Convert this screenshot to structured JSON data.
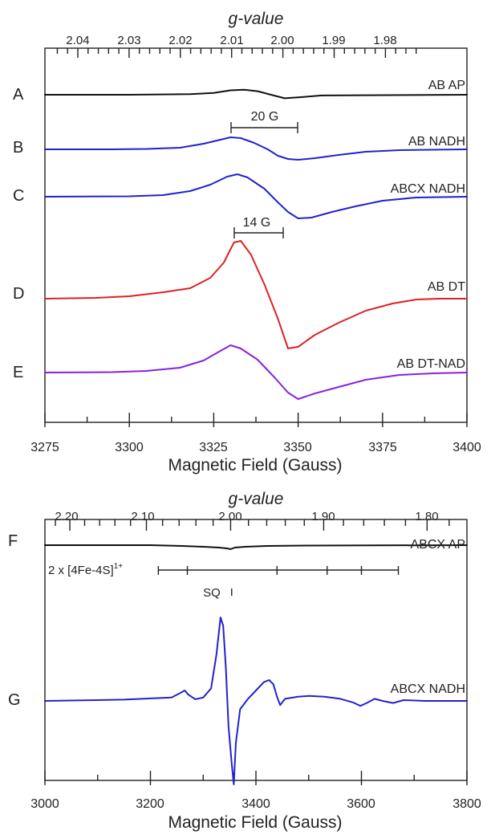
{
  "chart_data": [
    {
      "type": "line",
      "top_axis": {
        "label": "g-value",
        "ticks": [
          "2.04",
          "2.03",
          "2.02",
          "2.01",
          "2.00",
          "1.99",
          "1.98"
        ],
        "values": [
          2.04,
          2.03,
          2.02,
          2.01,
          2.0,
          1.99,
          1.98
        ],
        "minor_step": 0.002
      },
      "x_axis": {
        "label": "Magnetic Field (Gauss)",
        "ticks": [
          "3275",
          "3300",
          "3325",
          "3350",
          "3375",
          "3400"
        ],
        "values": [
          3275,
          3300,
          3325,
          3350,
          3375,
          3400
        ],
        "xlim": [
          3275,
          3400
        ],
        "minor_step": 12.5
      },
      "scale_bars": [
        {
          "label": "20 G",
          "x_start": 3330,
          "x_end": 3350
        },
        {
          "label": "14 G",
          "x_start": 3331,
          "x_end": 3345
        }
      ],
      "series": [
        {
          "letter": "A",
          "name": "AB AP",
          "color": "#111111",
          "points": [
            [
              3275,
              0
            ],
            [
              3300,
              0
            ],
            [
              3318,
              0.3
            ],
            [
              3325,
              1
            ],
            [
              3330,
              2.5
            ],
            [
              3334,
              2.8
            ],
            [
              3338,
              2
            ],
            [
              3343,
              -0.5
            ],
            [
              3346,
              -2
            ],
            [
              3350,
              -1.5
            ],
            [
              3357,
              -0.4
            ],
            [
              3400,
              0
            ]
          ]
        },
        {
          "letter": "B",
          "name": "AB NADH",
          "color": "#2222cc",
          "points": [
            [
              3275,
              0
            ],
            [
              3295,
              0
            ],
            [
              3305,
              0.5
            ],
            [
              3315,
              2
            ],
            [
              3322,
              7
            ],
            [
              3327,
              12
            ],
            [
              3330,
              15
            ],
            [
              3333,
              14
            ],
            [
              3337,
              8
            ],
            [
              3341,
              0
            ],
            [
              3344,
              -8
            ],
            [
              3347,
              -12
            ],
            [
              3350,
              -13
            ],
            [
              3355,
              -11
            ],
            [
              3362,
              -7
            ],
            [
              3370,
              -3
            ],
            [
              3380,
              -1
            ],
            [
              3400,
              0
            ]
          ]
        },
        {
          "letter": "C",
          "name": "ABCX NADH",
          "color": "#2222cc",
          "points": [
            [
              3275,
              0
            ],
            [
              3300,
              0.5
            ],
            [
              3310,
              2
            ],
            [
              3318,
              7
            ],
            [
              3324,
              15
            ],
            [
              3329,
              25
            ],
            [
              3332,
              28
            ],
            [
              3335,
              24
            ],
            [
              3340,
              10
            ],
            [
              3344,
              -7
            ],
            [
              3347,
              -19
            ],
            [
              3350,
              -27
            ],
            [
              3354,
              -26
            ],
            [
              3360,
              -19
            ],
            [
              3367,
              -12
            ],
            [
              3375,
              -5
            ],
            [
              3385,
              -1
            ],
            [
              3400,
              0
            ]
          ]
        },
        {
          "letter": "D",
          "name": "AB DT",
          "color": "#dd2222",
          "points": [
            [
              3275,
              0
            ],
            [
              3290,
              1
            ],
            [
              3300,
              3
            ],
            [
              3310,
              8
            ],
            [
              3318,
              13
            ],
            [
              3324,
              26
            ],
            [
              3328,
              45
            ],
            [
              3331,
              70
            ],
            [
              3333,
              72
            ],
            [
              3336,
              55
            ],
            [
              3340,
              18
            ],
            [
              3344,
              -25
            ],
            [
              3347,
              -62
            ],
            [
              3350,
              -60
            ],
            [
              3355,
              -45
            ],
            [
              3362,
              -30
            ],
            [
              3370,
              -15
            ],
            [
              3378,
              -6
            ],
            [
              3385,
              -1
            ],
            [
              3392,
              0
            ],
            [
              3400,
              0
            ]
          ]
        },
        {
          "letter": "E",
          "name": "AB DT-NAD",
          "color": "#8822dd",
          "points": [
            [
              3275,
              0
            ],
            [
              3295,
              0.5
            ],
            [
              3305,
              2
            ],
            [
              3315,
              6
            ],
            [
              3322,
              15
            ],
            [
              3327,
              27
            ],
            [
              3330,
              34
            ],
            [
              3333,
              30
            ],
            [
              3338,
              16
            ],
            [
              3343,
              -6
            ],
            [
              3347,
              -25
            ],
            [
              3350,
              -33
            ],
            [
              3355,
              -26
            ],
            [
              3362,
              -18
            ],
            [
              3370,
              -9
            ],
            [
              3380,
              -3
            ],
            [
              3390,
              -1
            ],
            [
              3400,
              0
            ]
          ]
        }
      ]
    },
    {
      "type": "line",
      "top_axis": {
        "label": "g-value",
        "ticks": [
          "2.20",
          "2.10",
          "2.00",
          "1.90",
          "1.80"
        ],
        "values": [
          2.2,
          2.1,
          2.0,
          1.9,
          1.8
        ],
        "minor_step": 0.02
      },
      "x_axis": {
        "label": "Magnetic Field (Gauss)",
        "ticks": [
          "3000",
          "3200",
          "3400",
          "3600",
          "3800"
        ],
        "values": [
          3000,
          3200,
          3400,
          3600,
          3800
        ],
        "xlim": [
          3000,
          3800
        ],
        "minor_step": 100
      },
      "annotations": {
        "cluster_label_main": "2 x [4Fe-4S]",
        "cluster_label_sup": "1+",
        "cluster_bar_start": 3215,
        "cluster_bar_end": 3670,
        "cluster_ticks": [
          3215,
          3270,
          3440,
          3535,
          3600,
          3670
        ],
        "sq_label": "SQ",
        "sq_position": 3354
      },
      "series": [
        {
          "letter": "F",
          "name": "ABCX AP",
          "color": "#111111",
          "points": [
            [
              3000,
              0
            ],
            [
              3200,
              0
            ],
            [
              3260,
              -1
            ],
            [
              3300,
              -2
            ],
            [
              3330,
              -3
            ],
            [
              3345,
              -4
            ],
            [
              3352,
              -5
            ],
            [
              3360,
              -3
            ],
            [
              3380,
              -2
            ],
            [
              3420,
              -1
            ],
            [
              3500,
              -0.5
            ],
            [
              3800,
              0
            ]
          ]
        },
        {
          "letter": "G",
          "name": "ABCX NADH",
          "color": "#2222cc",
          "points": [
            [
              3000,
              0
            ],
            [
              3150,
              3
            ],
            [
              3200,
              6
            ],
            [
              3240,
              8
            ],
            [
              3258,
              20
            ],
            [
              3265,
              25
            ],
            [
              3272,
              15
            ],
            [
              3285,
              4
            ],
            [
              3300,
              8
            ],
            [
              3315,
              30
            ],
            [
              3325,
              110
            ],
            [
              3333,
              200
            ],
            [
              3338,
              180
            ],
            [
              3343,
              80
            ],
            [
              3348,
              -60
            ],
            [
              3354,
              -150
            ],
            [
              3358,
              -200
            ],
            [
              3362,
              -100
            ],
            [
              3370,
              -20
            ],
            [
              3385,
              5
            ],
            [
              3400,
              25
            ],
            [
              3415,
              45
            ],
            [
              3425,
              50
            ],
            [
              3433,
              40
            ],
            [
              3440,
              10
            ],
            [
              3446,
              -10
            ],
            [
              3455,
              5
            ],
            [
              3480,
              10
            ],
            [
              3500,
              12
            ],
            [
              3530,
              10
            ],
            [
              3560,
              5
            ],
            [
              3585,
              -4
            ],
            [
              3598,
              -12
            ],
            [
              3610,
              -5
            ],
            [
              3625,
              5
            ],
            [
              3640,
              0
            ],
            [
              3660,
              -5
            ],
            [
              3680,
              2
            ],
            [
              3720,
              0
            ],
            [
              3800,
              0
            ]
          ]
        }
      ]
    }
  ]
}
